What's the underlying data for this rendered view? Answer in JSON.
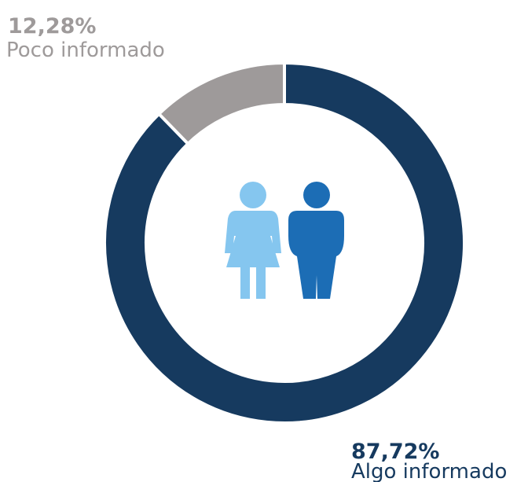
{
  "chart_data": {
    "type": "pie",
    "categories": [
      "Algo informado",
      "Poco informado"
    ],
    "values": [
      87.72,
      12.28
    ],
    "value_labels": [
      "87,72%",
      "12,28%"
    ],
    "colors": [
      "#163a5f",
      "#9e9a9a"
    ]
  }
}
